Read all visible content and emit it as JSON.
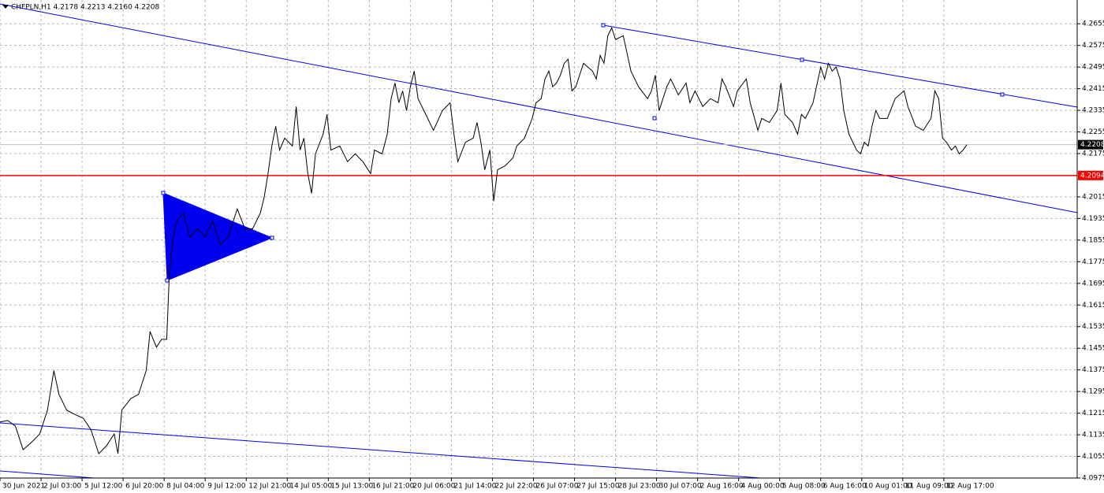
{
  "chart_data": {
    "type": "line",
    "title": "CHFPLN,H1  4.2178 4.2213 4.2160 4.2208",
    "color": "#000000",
    "x": [
      0,
      6,
      12,
      18,
      25,
      31,
      37,
      42,
      46,
      52,
      58,
      65,
      71,
      77,
      83,
      89,
      92,
      95,
      102,
      108,
      114,
      117,
      122,
      126,
      130,
      132,
      135,
      138,
      143,
      148,
      154,
      160,
      166,
      172,
      178,
      185,
      191,
      197,
      203,
      206,
      209,
      212,
      215,
      218,
      222,
      228,
      231,
      234,
      237,
      240,
      243,
      246,
      252,
      255,
      258,
      265,
      271,
      277,
      283,
      289,
      292,
      298,
      302,
      305,
      308,
      311,
      314,
      317,
      320,
      323,
      326,
      332,
      338,
      345,
      351,
      354,
      357,
      363,
      369,
      372,
      375,
      378,
      382,
      385,
      388,
      394,
      400,
      403,
      409,
      415,
      418,
      422,
      425,
      428,
      431,
      434,
      437,
      440,
      443,
      446,
      449,
      455,
      462,
      465,
      468,
      471,
      474,
      477,
      480,
      486,
      492,
      498,
      505,
      508,
      511,
      514,
      520,
      523,
      529,
      535,
      538,
      542,
      548,
      554,
      560,
      563,
      566,
      572,
      575,
      582,
      585,
      591,
      594,
      600,
      606,
      609,
      612,
      618,
      622,
      625,
      628,
      634,
      640,
      643,
      646,
      649,
      652,
      655,
      658,
      662,
      668,
      671,
      674,
      677,
      680,
      683,
      686,
      692,
      698,
      705,
      708,
      714,
      720,
      726,
      729,
      732,
      735,
      738,
      742,
      745,
      748,
      751,
      754
    ],
    "values": [
      4.1182,
      4.1188,
      4.1167,
      4.108,
      4.1109,
      4.1138,
      4.1226,
      4.1372,
      4.1284,
      4.1226,
      4.1211,
      4.1196,
      4.1153,
      4.1065,
      4.1094,
      4.1138,
      4.1065,
      4.1226,
      4.1269,
      4.1284,
      4.1372,
      4.1517,
      4.1459,
      4.1488,
      4.1488,
      4.1722,
      4.1867,
      4.1926,
      4.1955,
      4.1867,
      4.1897,
      4.1867,
      4.1926,
      4.1838,
      4.1867,
      4.197,
      4.1897,
      4.1897,
      4.1955,
      4.2013,
      4.2101,
      4.2203,
      4.2276,
      4.2188,
      4.2232,
      4.2203,
      4.2349,
      4.2188,
      4.2232,
      4.2101,
      4.2028,
      4.2174,
      4.2247,
      4.232,
      4.2188,
      4.2203,
      4.2145,
      4.2174,
      4.2145,
      4.2101,
      4.2188,
      4.2174,
      4.2247,
      4.2378,
      4.2436,
      4.2363,
      4.2407,
      4.2334,
      4.2422,
      4.248,
      4.2378,
      4.232,
      4.2261,
      4.2334,
      4.2363,
      4.2247,
      4.2145,
      4.2217,
      4.2232,
      4.229,
      4.2217,
      4.2115,
      4.2188,
      4.1999,
      4.2115,
      4.213,
      4.2159,
      4.2203,
      4.2232,
      4.2305,
      4.2363,
      4.2378,
      4.2451,
      4.248,
      4.2422,
      4.2436,
      4.2465,
      4.2509,
      4.2524,
      4.2407,
      4.2422,
      4.2509,
      4.248,
      4.2451,
      4.2538,
      4.2509,
      4.2611,
      4.264,
      4.2597,
      4.2611,
      4.248,
      4.2422,
      4.2378,
      4.2407,
      4.2465,
      4.2334,
      4.2422,
      4.2451,
      4.2392,
      4.2436,
      4.2363,
      4.2407,
      4.2349,
      4.2378,
      4.2363,
      4.2451,
      4.2422,
      4.2349,
      4.2407,
      4.2451,
      4.2363,
      4.2261,
      4.2305,
      4.229,
      4.2334,
      4.2436,
      4.232,
      4.229,
      4.2247,
      4.232,
      4.2305,
      4.2363,
      4.2495,
      4.2451,
      4.2509,
      4.248,
      4.2495,
      4.2451,
      4.2334,
      4.2247,
      4.2188,
      4.2174,
      4.2217,
      4.2203,
      4.2276,
      4.2334,
      4.2305,
      4.2305,
      4.2378,
      4.2407,
      4.2349,
      4.2276,
      4.2261,
      4.2305,
      4.2407,
      4.2378,
      4.2232,
      4.2217,
      4.2188,
      4.2203,
      4.2174,
      4.2188,
      4.2208
    ],
    "xlim": [
      0,
      840
    ],
    "xticks": [
      {
        "value": 0,
        "label": "30 Jun 2021"
      },
      {
        "value": 32,
        "label": "2 Jul 03:00"
      },
      {
        "value": 64,
        "label": "5 Jul 12:00"
      },
      {
        "value": 96,
        "label": "6 Jul 20:00"
      },
      {
        "value": 128,
        "label": "8 Jul 04:00"
      },
      {
        "value": 160,
        "label": "9 Jul 12:00"
      },
      {
        "value": 192,
        "label": "12 Jul 21:00"
      },
      {
        "value": 224,
        "label": "14 Jul 05:00"
      },
      {
        "value": 256,
        "label": "15 Jul 13:00"
      },
      {
        "value": 288,
        "label": "16 Jul 21:00"
      },
      {
        "value": 320,
        "label": "20 Jul 06:00"
      },
      {
        "value": 352,
        "label": "21 Jul 14:00"
      },
      {
        "value": 384,
        "label": "22 Jul 22:00"
      },
      {
        "value": 416,
        "label": "26 Jul 07:00"
      },
      {
        "value": 448,
        "label": "27 Jul 15:00"
      },
      {
        "value": 480,
        "label": "28 Jul 23:00"
      },
      {
        "value": 512,
        "label": "30 Jul 07:00"
      },
      {
        "value": 544,
        "label": "2 Aug 16:00"
      },
      {
        "value": 576,
        "label": "4 Aug 00:00"
      },
      {
        "value": 608,
        "label": "5 Aug 08:00"
      },
      {
        "value": 640,
        "label": "6 Aug 16:00"
      },
      {
        "value": 672,
        "label": "10 Aug 01:00"
      },
      {
        "value": 704,
        "label": "11 Aug 09:00"
      },
      {
        "value": 736,
        "label": "12 Aug 17:00"
      }
    ],
    "ylim": [
      4.0975,
      4.2743
    ],
    "yticks": [
      4.0975,
      4.1055,
      4.1135,
      4.1215,
      4.1295,
      4.1375,
      4.1455,
      4.1535,
      4.1615,
      4.1695,
      4.1775,
      4.1855,
      4.1935,
      4.2015,
      4.2175,
      4.2255,
      4.2335,
      4.2415,
      4.2495,
      4.2575,
      4.2655
    ],
    "grid": true,
    "hlines": [
      {
        "value": 4.2094,
        "color": "#ff0000"
      }
    ],
    "last_price": 4.2208
  }
}
